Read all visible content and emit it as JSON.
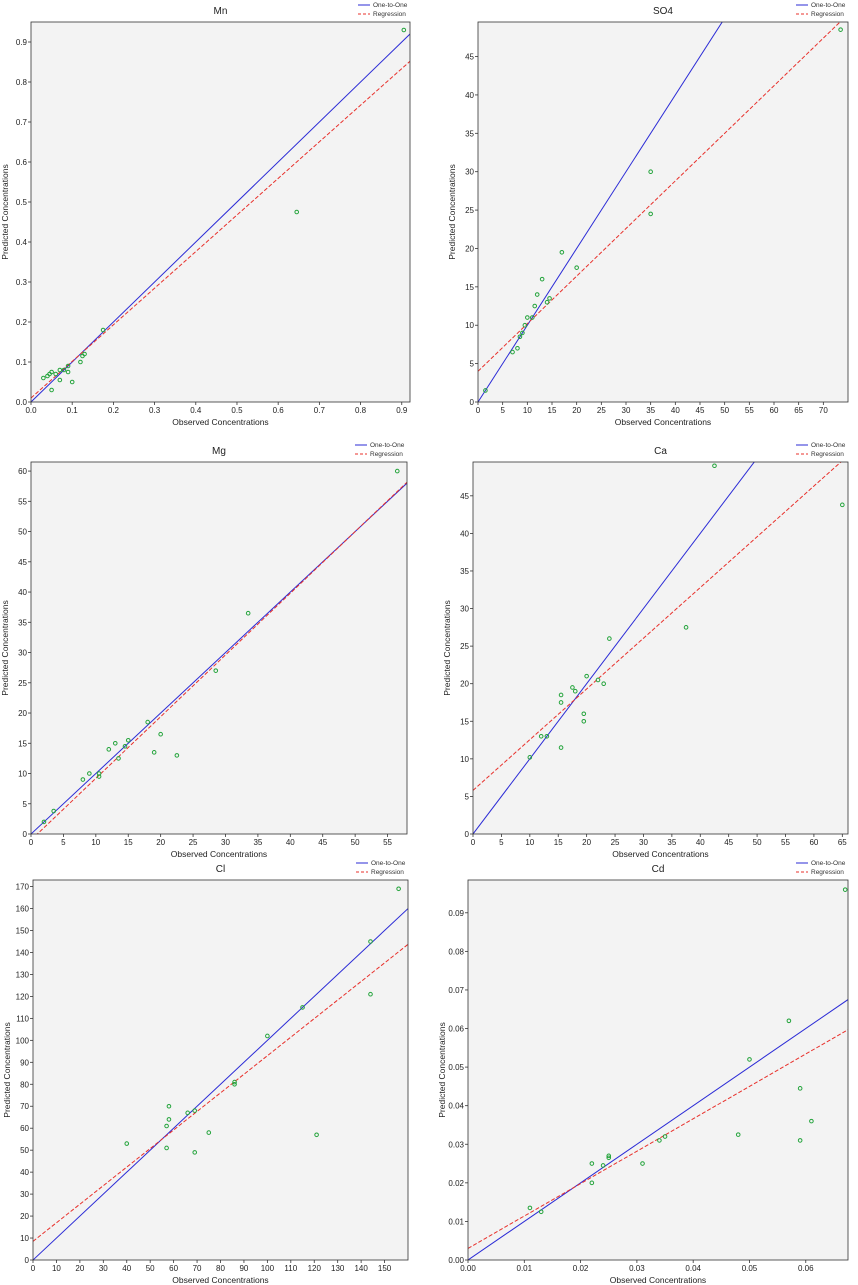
{
  "colors": {
    "one_to_one": "#2b2bd6",
    "regression": "#e8302b",
    "points": "#22a33a",
    "plot_bg": "#f3f3f3"
  },
  "chart_data": [
    {
      "type": "scatter",
      "title": "Mn",
      "xlabel": "Observed Concentrations",
      "ylabel": "Predicted Concentrations",
      "xlim": [
        0,
        0.92
      ],
      "ylim": [
        0,
        0.95
      ],
      "xticks": [
        "0.0",
        "0.1",
        "0.2",
        "0.3",
        "0.4",
        "0.5",
        "0.6",
        "0.7",
        "0.8",
        "0.9"
      ],
      "xtick_values": [
        0,
        0.1,
        0.2,
        0.3,
        0.4,
        0.5,
        0.6,
        0.7,
        0.8,
        0.9
      ],
      "yticks": [
        "0.0",
        "0.1",
        "0.2",
        "0.3",
        "0.4",
        "0.5",
        "0.6",
        "0.7",
        "0.8",
        "0.9"
      ],
      "ytick_values": [
        0,
        0.1,
        0.2,
        0.3,
        0.4,
        0.5,
        0.6,
        0.7,
        0.8,
        0.9
      ],
      "legend": [
        "One-to-One",
        "Regression"
      ],
      "legend_position": "top-right",
      "points": [
        [
          0.03,
          0.06
        ],
        [
          0.04,
          0.065
        ],
        [
          0.045,
          0.07
        ],
        [
          0.05,
          0.075
        ],
        [
          0.05,
          0.03
        ],
        [
          0.06,
          0.07
        ],
        [
          0.07,
          0.08
        ],
        [
          0.07,
          0.055
        ],
        [
          0.08,
          0.08
        ],
        [
          0.09,
          0.075
        ],
        [
          0.09,
          0.09
        ],
        [
          0.1,
          0.05
        ],
        [
          0.12,
          0.1
        ],
        [
          0.125,
          0.115
        ],
        [
          0.13,
          0.12
        ],
        [
          0.175,
          0.18
        ],
        [
          0.645,
          0.475
        ],
        [
          0.905,
          0.93
        ]
      ],
      "regression": {
        "intercept": 0.01,
        "slope": 0.915
      }
    },
    {
      "type": "scatter",
      "title": "SO4",
      "xlabel": "Observed Concentrations",
      "ylabel": "Predicted Concentrations",
      "xlim": [
        0,
        75
      ],
      "ylim": [
        0,
        49.5
      ],
      "xticks": [
        "0",
        "5",
        "10",
        "15",
        "20",
        "25",
        "30",
        "35",
        "40",
        "45",
        "50",
        "55",
        "60",
        "65",
        "70"
      ],
      "xtick_values": [
        0,
        5,
        10,
        15,
        20,
        25,
        30,
        35,
        40,
        45,
        50,
        55,
        60,
        65,
        70
      ],
      "yticks": [
        "0",
        "5",
        "10",
        "15",
        "20",
        "25",
        "30",
        "35",
        "40",
        "45"
      ],
      "ytick_values": [
        0,
        5,
        10,
        15,
        20,
        25,
        30,
        35,
        40,
        45
      ],
      "legend": [
        "One-to-One",
        "Regression"
      ],
      "legend_position": "top-right",
      "points": [
        [
          1.5,
          1.5
        ],
        [
          7,
          6.5
        ],
        [
          8,
          7
        ],
        [
          8.5,
          8.5
        ],
        [
          9,
          9
        ],
        [
          9.5,
          10
        ],
        [
          10,
          11
        ],
        [
          11,
          11
        ],
        [
          11.5,
          12.5
        ],
        [
          12,
          14
        ],
        [
          13,
          16
        ],
        [
          14,
          13
        ],
        [
          14.5,
          13.5
        ],
        [
          17,
          19.5
        ],
        [
          20,
          17.5
        ],
        [
          35,
          30
        ],
        [
          35,
          24.5
        ],
        [
          73.5,
          48.5
        ]
      ],
      "regression": {
        "intercept": 4.0,
        "slope": 0.62
      }
    },
    {
      "type": "scatter",
      "title": "Mg",
      "xlabel": "Observed Concentrations",
      "ylabel": "Predicted Concentrations",
      "xlim": [
        0,
        58
      ],
      "ylim": [
        0,
        61.5
      ],
      "xticks": [
        "0",
        "5",
        "10",
        "15",
        "20",
        "25",
        "30",
        "35",
        "40",
        "45",
        "50",
        "55"
      ],
      "xtick_values": [
        0,
        5,
        10,
        15,
        20,
        25,
        30,
        35,
        40,
        45,
        50,
        55
      ],
      "yticks": [
        "0",
        "5",
        "10",
        "15",
        "20",
        "25",
        "30",
        "35",
        "40",
        "45",
        "50",
        "55",
        "60"
      ],
      "ytick_values": [
        0,
        5,
        10,
        15,
        20,
        25,
        30,
        35,
        40,
        45,
        50,
        55,
        60
      ],
      "legend": [
        "One-to-One",
        "Regression"
      ],
      "legend_position": "top-right",
      "points": [
        [
          2,
          2
        ],
        [
          3.5,
          3.8
        ],
        [
          8,
          9
        ],
        [
          9,
          10
        ],
        [
          10.5,
          9.5
        ],
        [
          10.5,
          10
        ],
        [
          12,
          14
        ],
        [
          13,
          15
        ],
        [
          13.5,
          12.5
        ],
        [
          14.5,
          14.5
        ],
        [
          15,
          15.5
        ],
        [
          18,
          18.5
        ],
        [
          19,
          13.5
        ],
        [
          20,
          16.5
        ],
        [
          22.5,
          13
        ],
        [
          28.5,
          27
        ],
        [
          33.5,
          36.5
        ],
        [
          56.5,
          60
        ]
      ],
      "regression": {
        "intercept": -1.0,
        "slope": 1.02
      }
    },
    {
      "type": "scatter",
      "title": "Ca",
      "xlabel": "Observed Concentrations",
      "ylabel": "Predicted Concentrations",
      "xlim": [
        0,
        66
      ],
      "ylim": [
        0,
        49.5
      ],
      "xticks": [
        "0",
        "5",
        "10",
        "15",
        "20",
        "25",
        "30",
        "35",
        "40",
        "45",
        "50",
        "55",
        "60",
        "65"
      ],
      "xtick_values": [
        0,
        5,
        10,
        15,
        20,
        25,
        30,
        35,
        40,
        45,
        50,
        55,
        60,
        65
      ],
      "yticks": [
        "0",
        "5",
        "10",
        "15",
        "20",
        "25",
        "30",
        "35",
        "40",
        "45"
      ],
      "ytick_values": [
        0,
        5,
        10,
        15,
        20,
        25,
        30,
        35,
        40,
        45
      ],
      "legend": [
        "One-to-One",
        "Regression"
      ],
      "legend_position": "top-right",
      "points": [
        [
          10,
          10.2
        ],
        [
          12,
          13
        ],
        [
          13,
          13
        ],
        [
          15.5,
          11.5
        ],
        [
          15.5,
          17.5
        ],
        [
          15.5,
          18.5
        ],
        [
          17.5,
          19.5
        ],
        [
          18,
          19
        ],
        [
          19.5,
          16
        ],
        [
          19.5,
          15
        ],
        [
          20,
          21
        ],
        [
          22,
          20.5
        ],
        [
          23,
          20
        ],
        [
          24,
          26
        ],
        [
          37.5,
          27.5
        ],
        [
          42.5,
          49
        ],
        [
          65,
          43.8
        ]
      ],
      "regression": {
        "intercept": 5.8,
        "slope": 0.675
      }
    },
    {
      "type": "scatter",
      "title": "Cl",
      "xlabel": "Observed Concentrations",
      "ylabel": "Predicted Concentrations",
      "xlim": [
        0,
        160
      ],
      "ylim": [
        0,
        173
      ],
      "xticks": [
        "0",
        "10",
        "20",
        "30",
        "40",
        "50",
        "60",
        "70",
        "80",
        "90",
        "100",
        "110",
        "120",
        "130",
        "140",
        "150"
      ],
      "xtick_values": [
        0,
        10,
        20,
        30,
        40,
        50,
        60,
        70,
        80,
        90,
        100,
        110,
        120,
        130,
        140,
        150
      ],
      "yticks": [
        "0",
        "10",
        "20",
        "30",
        "40",
        "50",
        "60",
        "70",
        "80",
        "90",
        "100",
        "110",
        "120",
        "130",
        "140",
        "150",
        "160",
        "170"
      ],
      "ytick_values": [
        0,
        10,
        20,
        30,
        40,
        50,
        60,
        70,
        80,
        90,
        100,
        110,
        120,
        130,
        140,
        150,
        160,
        170
      ],
      "legend": [
        "One-to-One",
        "Regression"
      ],
      "legend_position": "top-right",
      "points": [
        [
          40,
          53
        ],
        [
          57,
          51
        ],
        [
          57,
          61
        ],
        [
          58,
          64
        ],
        [
          58,
          70
        ],
        [
          66,
          67
        ],
        [
          69,
          68
        ],
        [
          69,
          49
        ],
        [
          75,
          58
        ],
        [
          86,
          80
        ],
        [
          86,
          81
        ],
        [
          100,
          102
        ],
        [
          115,
          115
        ],
        [
          121,
          57
        ],
        [
          144,
          145
        ],
        [
          144,
          121
        ],
        [
          156,
          169
        ]
      ],
      "regression": {
        "intercept": 8.5,
        "slope": 0.845
      }
    },
    {
      "type": "scatter",
      "title": "Cd",
      "xlabel": "Observed Concentrations",
      "ylabel": "Predicted Concentrations",
      "xlim": [
        0,
        0.0675
      ],
      "ylim": [
        0,
        0.0985
      ],
      "xticks": [
        "0.00",
        "0.01",
        "0.02",
        "0.03",
        "0.04",
        "0.05",
        "0.06"
      ],
      "xtick_values": [
        0,
        0.01,
        0.02,
        0.03,
        0.04,
        0.05,
        0.06
      ],
      "yticks": [
        "0.00",
        "0.01",
        "0.02",
        "0.03",
        "0.04",
        "0.05",
        "0.06",
        "0.07",
        "0.08",
        "0.09"
      ],
      "ytick_values": [
        0,
        0.01,
        0.02,
        0.03,
        0.04,
        0.05,
        0.06,
        0.07,
        0.08,
        0.09
      ],
      "legend": [
        "One-to-One",
        "Regression"
      ],
      "legend_position": "top-right",
      "points": [
        [
          0.011,
          0.0135
        ],
        [
          0.013,
          0.0125
        ],
        [
          0.022,
          0.02
        ],
        [
          0.022,
          0.025
        ],
        [
          0.024,
          0.0245
        ],
        [
          0.025,
          0.027
        ],
        [
          0.025,
          0.0265
        ],
        [
          0.031,
          0.025
        ],
        [
          0.034,
          0.031
        ],
        [
          0.035,
          0.032
        ],
        [
          0.048,
          0.0325
        ],
        [
          0.05,
          0.052
        ],
        [
          0.057,
          0.062
        ],
        [
          0.059,
          0.031
        ],
        [
          0.059,
          0.0445
        ],
        [
          0.061,
          0.036
        ],
        [
          0.067,
          0.096
        ]
      ],
      "regression": {
        "intercept": 0.003,
        "slope": 0.84
      }
    }
  ]
}
